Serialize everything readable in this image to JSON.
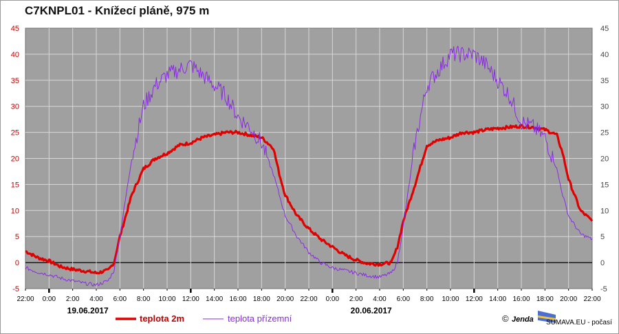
{
  "chart_data": {
    "type": "line",
    "title": "C7KNPL01 - Knížecí pláně, 975 m",
    "ylim": [
      -5,
      45
    ],
    "yticks": [
      -5,
      0,
      5,
      10,
      15,
      20,
      25,
      30,
      35,
      40,
      45
    ],
    "xlim": [
      "18.06.2017 22:00",
      "20.06.2017 22:00"
    ],
    "xtick_labels": [
      "22:00",
      "0:00",
      "2:00",
      "4:00",
      "6:00",
      "8:00",
      "10:00",
      "12:00",
      "14:00",
      "16:00",
      "18:00",
      "20:00",
      "22:00",
      "0:00",
      "2:00",
      "4:00",
      "6:00",
      "8:00",
      "10:00",
      "12:00",
      "14:00",
      "16:00",
      "18:00",
      "20:00",
      "22:00"
    ],
    "date_labels": [
      "19.06.2017",
      "20.06.2017"
    ],
    "grid": true,
    "legend_position": "bottom",
    "series": [
      {
        "name": "teplota 2m",
        "color": "#e00000",
        "x": [
          "18.06.2017 22:00",
          "18.06.2017 23:00",
          "19.06.2017 00:00",
          "19.06.2017 01:00",
          "19.06.2017 02:00",
          "19.06.2017 03:00",
          "19.06.2017 04:00",
          "19.06.2017 05:00",
          "19.06.2017 05:30",
          "19.06.2017 06:00",
          "19.06.2017 07:00",
          "19.06.2017 08:00",
          "19.06.2017 09:00",
          "19.06.2017 10:00",
          "19.06.2017 11:00",
          "19.06.2017 12:00",
          "19.06.2017 13:00",
          "19.06.2017 14:00",
          "19.06.2017 15:00",
          "19.06.2017 16:00",
          "19.06.2017 17:00",
          "19.06.2017 18:00",
          "19.06.2017 19:00",
          "19.06.2017 19:30",
          "19.06.2017 20:00",
          "19.06.2017 21:00",
          "19.06.2017 22:00",
          "19.06.2017 23:00",
          "20.06.2017 00:00",
          "20.06.2017 01:00",
          "20.06.2017 02:00",
          "20.06.2017 03:00",
          "20.06.2017 04:00",
          "20.06.2017 05:00",
          "20.06.2017 05:30",
          "20.06.2017 06:00",
          "20.06.2017 07:00",
          "20.06.2017 08:00",
          "20.06.2017 09:00",
          "20.06.2017 10:00",
          "20.06.2017 11:00",
          "20.06.2017 12:00",
          "20.06.2017 13:00",
          "20.06.2017 14:00",
          "20.06.2017 15:00",
          "20.06.2017 16:00",
          "20.06.2017 17:00",
          "20.06.2017 18:00",
          "20.06.2017 19:00",
          "20.06.2017 19:30",
          "20.06.2017 20:00",
          "20.06.2017 21:00",
          "20.06.2017 22:00"
        ],
        "values": [
          2.2,
          1.0,
          0.3,
          -0.8,
          -1.3,
          -1.6,
          -2.0,
          -1.5,
          0,
          5,
          13,
          18,
          20,
          21,
          22.5,
          23,
          24,
          24.5,
          25,
          25,
          24.5,
          24,
          22,
          17,
          13,
          9,
          6.5,
          4.5,
          3,
          1.5,
          0.5,
          -0.2,
          -0.3,
          0,
          3,
          8,
          15,
          22.5,
          23.5,
          24,
          25,
          25,
          25.5,
          25.8,
          26,
          26.2,
          26,
          25.5,
          24.5,
          21,
          16,
          10,
          8
        ]
      },
      {
        "name": "teplota přízemní",
        "color": "#8a2be2",
        "x": [
          "18.06.2017 22:00",
          "18.06.2017 23:00",
          "19.06.2017 00:00",
          "19.06.2017 01:00",
          "19.06.2017 02:00",
          "19.06.2017 03:00",
          "19.06.2017 04:00",
          "19.06.2017 05:00",
          "19.06.2017 05:30",
          "19.06.2017 06:00",
          "19.06.2017 07:00",
          "19.06.2017 08:00",
          "19.06.2017 09:00",
          "19.06.2017 10:00",
          "19.06.2017 11:00",
          "19.06.2017 12:00",
          "19.06.2017 13:00",
          "19.06.2017 14:00",
          "19.06.2017 15:00",
          "19.06.2017 16:00",
          "19.06.2017 17:00",
          "19.06.2017 18:00",
          "19.06.2017 19:00",
          "19.06.2017 19:30",
          "19.06.2017 20:00",
          "19.06.2017 21:00",
          "19.06.2017 22:00",
          "19.06.2017 23:00",
          "20.06.2017 00:00",
          "20.06.2017 01:00",
          "20.06.2017 02:00",
          "20.06.2017 03:00",
          "20.06.2017 04:00",
          "20.06.2017 05:00",
          "20.06.2017 05:30",
          "20.06.2017 06:00",
          "20.06.2017 07:00",
          "20.06.2017 08:00",
          "20.06.2017 09:00",
          "20.06.2017 10:00",
          "20.06.2017 11:00",
          "20.06.2017 12:00",
          "20.06.2017 13:00",
          "20.06.2017 14:00",
          "20.06.2017 15:00",
          "20.06.2017 16:00",
          "20.06.2017 17:00",
          "20.06.2017 18:00",
          "20.06.2017 19:00",
          "20.06.2017 19:30",
          "20.06.2017 20:00",
          "20.06.2017 21:00",
          "20.06.2017 22:00"
        ],
        "values": [
          -1,
          -1.8,
          -2.3,
          -3,
          -3.5,
          -4,
          -4.3,
          -3.5,
          -1.5,
          5,
          20,
          30,
          34,
          36,
          37,
          38,
          36,
          34,
          32,
          28,
          26,
          23,
          17,
          13,
          9,
          5,
          2,
          0,
          -1,
          -1.5,
          -2,
          -2.5,
          -2.8,
          -2,
          0,
          7,
          23,
          34,
          37,
          40,
          40,
          40,
          38,
          35,
          32,
          27,
          26,
          24,
          18,
          13,
          9,
          5.5,
          4.5
        ]
      }
    ]
  },
  "legend": {
    "red_label": "teplota 2m",
    "purple_label": "teplota přízemní"
  },
  "credit": {
    "copyright": "©",
    "signature": "Jenda",
    "site": "SUMAVA.EU - počasí"
  }
}
